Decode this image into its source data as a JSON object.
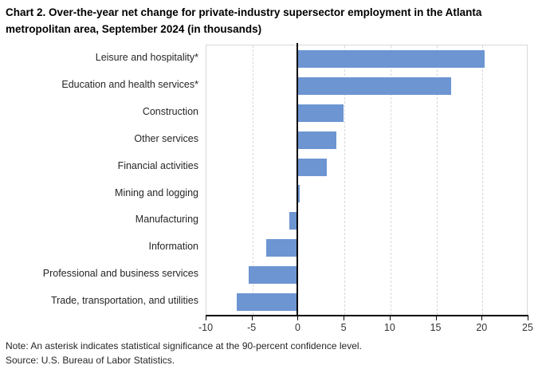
{
  "title": "Chart 2. Over-the-year net change for private-industry supersector employment in the Atlanta metropolitan area, September 2024 (in thousands)",
  "note": "Note: An asterisk indicates statistical significance at the 90-percent confidence level.",
  "source": "Source: U.S. Bureau of Labor Statistics.",
  "colors": {
    "bar": "#6C95D2",
    "zero_axis": "#000000",
    "bottom_axis": "#000000",
    "gridline": "#D9D9D9",
    "plot_border": "#D9D9D9"
  },
  "chart_data": {
    "type": "bar",
    "orientation": "horizontal",
    "title": "Chart 2. Over-the-year net change for private-industry supersector employment in the Atlanta metropolitan area, September 2024 (in thousands)",
    "units": "thousands",
    "categories": [
      "Leisure and hospitality*",
      "Education and health services*",
      "Construction",
      "Other services",
      "Financial activities",
      "Mining and logging",
      "Manufacturing",
      "Information",
      "Professional and business services",
      "Trade, transportation, and utilities"
    ],
    "values": [
      20.2,
      16.6,
      4.9,
      4.1,
      3.1,
      0.1,
      -1.0,
      -3.5,
      -5.4,
      -6.7
    ],
    "xlim": [
      -10,
      25
    ],
    "x_ticks": [
      -10,
      -5,
      0,
      5,
      10,
      15,
      20,
      25
    ],
    "xlabel": "",
    "ylabel": "",
    "grid": "vertical-dashed",
    "legend": "none"
  }
}
